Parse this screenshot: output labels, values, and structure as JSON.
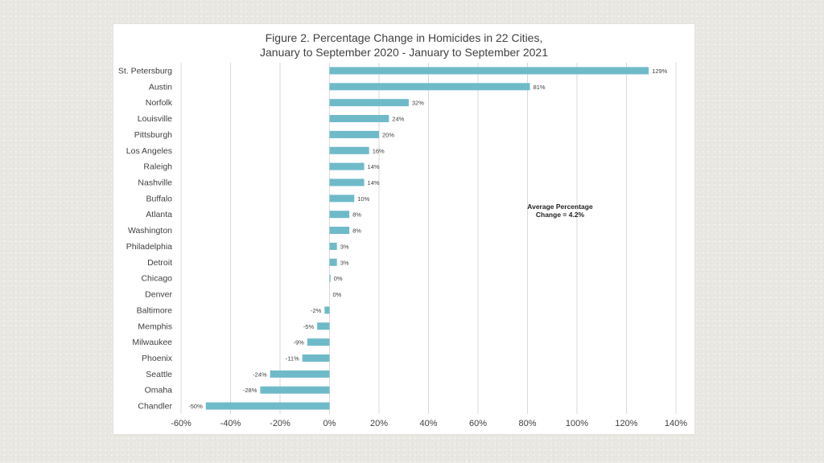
{
  "chart_data": {
    "type": "bar",
    "orientation": "horizontal",
    "title": "Figure 2. Percentage Change in Homicides in 22 Cities,",
    "subtitle": "January to September 2020 - January to September 2021",
    "categories": [
      "St. Petersburg",
      "Austin",
      "Norfolk",
      "Louisville",
      "Pittsburgh",
      "Los Angeles",
      "Raleigh",
      "Nashville",
      "Buffalo",
      "Atlanta",
      "Washington",
      "Philadelphia",
      "Detroit",
      "Chicago",
      "Denver",
      "Baltimore",
      "Memphis",
      "Milwaukee",
      "Phoenix",
      "Seattle",
      "Omaha",
      "Chandler"
    ],
    "values": [
      129,
      81,
      32,
      24,
      20,
      16,
      14,
      14,
      10,
      8,
      8,
      3,
      3,
      0.4,
      0,
      -2,
      -5,
      -9,
      -11,
      -24,
      -28,
      -50
    ],
    "data_labels": [
      "129%",
      "81%",
      "32%",
      "24%",
      "20%",
      "16%",
      "14%",
      "14%",
      "10%",
      "8%",
      "8%",
      "3%",
      "3%",
      "0%",
      "0%",
      "-2%",
      "-5%",
      "-9%",
      "-11%",
      "-24%",
      "-28%",
      "-50%"
    ],
    "xlim": [
      -60,
      140
    ],
    "x_ticks": [
      -60,
      -40,
      -20,
      0,
      20,
      40,
      60,
      80,
      100,
      120,
      140
    ],
    "x_tick_labels": [
      "-60%",
      "-40%",
      "-20%",
      "0%",
      "20%",
      "40%",
      "60%",
      "80%",
      "100%",
      "120%",
      "140%"
    ],
    "xlabel": "",
    "ylabel": "",
    "grid": true,
    "bar_color": "#6fbac9",
    "annotation": [
      "Average Percentage",
      "Change = 4.2%"
    ]
  }
}
